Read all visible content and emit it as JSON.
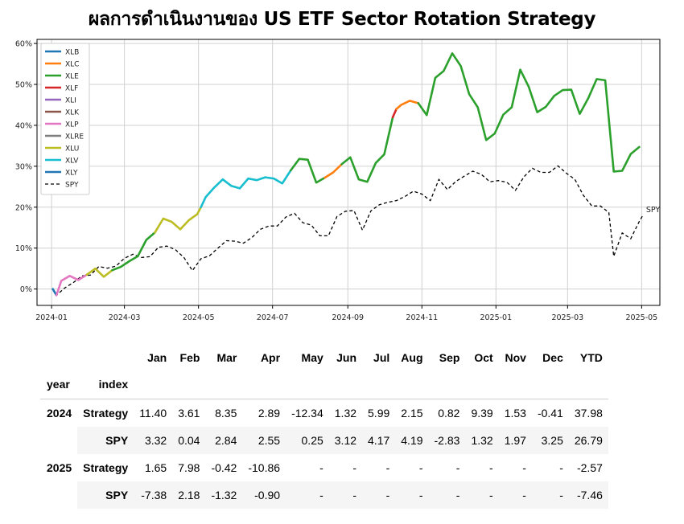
{
  "title": "ผลการดำเนินงานของ US ETF Sector Rotation Strategy",
  "chart_data": {
    "type": "line",
    "x_ticks": [
      "2024-01",
      "2024-03",
      "2024-05",
      "2024-07",
      "2024-09",
      "2024-11",
      "2025-01",
      "2025-03",
      "2025-05"
    ],
    "y_ticks": [
      "0%",
      "10%",
      "20%",
      "30%",
      "40%",
      "50%",
      "60%"
    ],
    "ylim": [
      -4,
      61
    ],
    "xlim": [
      "2023-12-20",
      "2025-05-16"
    ],
    "grid": true,
    "legend_position": "top-left",
    "legend": [
      {
        "name": "XLB",
        "color": "#1f77b4",
        "dash": false
      },
      {
        "name": "XLC",
        "color": "#ff7f0e",
        "dash": false
      },
      {
        "name": "XLE",
        "color": "#2ca02c",
        "dash": false
      },
      {
        "name": "XLF",
        "color": "#d62728",
        "dash": false
      },
      {
        "name": "XLI",
        "color": "#9467bd",
        "dash": false
      },
      {
        "name": "XLK",
        "color": "#8c564b",
        "dash": false
      },
      {
        "name": "XLP",
        "color": "#e377c2",
        "dash": false
      },
      {
        "name": "XLRE",
        "color": "#7f7f7f",
        "dash": false
      },
      {
        "name": "XLU",
        "color": "#bcbd22",
        "dash": false
      },
      {
        "name": "XLV",
        "color": "#17becf",
        "dash": false
      },
      {
        "name": "XLY",
        "color": "#1f77b4",
        "dash": false
      },
      {
        "name": "SPY",
        "color": "#000000",
        "dash": true
      }
    ],
    "end_label": "SPY",
    "strategy_segments": [
      {
        "name": "XLB",
        "color": "#1f77b4",
        "points": [
          [
            "2024-01-02",
            0
          ],
          [
            "2024-01-05",
            -1.5
          ]
        ]
      },
      {
        "name": "XLP",
        "color": "#e377c2",
        "points": [
          [
            "2024-01-05",
            -1.5
          ],
          [
            "2024-01-09",
            2
          ],
          [
            "2024-01-16",
            3.2
          ],
          [
            "2024-01-23",
            2.2
          ],
          [
            "2024-01-30",
            3.5
          ]
        ]
      },
      {
        "name": "XLU",
        "color": "#bcbd22",
        "points": [
          [
            "2024-01-30",
            3.5
          ],
          [
            "2024-02-06",
            5
          ],
          [
            "2024-02-13",
            3
          ],
          [
            "2024-02-20",
            4.6
          ]
        ]
      },
      {
        "name": "XLE",
        "color": "#2ca02c",
        "points": [
          [
            "2024-02-20",
            4.6
          ],
          [
            "2024-02-27",
            5.4
          ],
          [
            "2024-03-05",
            6.8
          ],
          [
            "2024-03-12",
            8
          ],
          [
            "2024-03-19",
            12
          ],
          [
            "2024-03-26",
            13.8
          ]
        ]
      },
      {
        "name": "XLU",
        "color": "#bcbd22",
        "points": [
          [
            "2024-03-26",
            13.8
          ],
          [
            "2024-04-02",
            17.2
          ],
          [
            "2024-04-09",
            16.4
          ],
          [
            "2024-04-16",
            14.6
          ],
          [
            "2024-04-23",
            16.8
          ],
          [
            "2024-04-30",
            18.3
          ],
          [
            "2024-05-03",
            20
          ]
        ]
      },
      {
        "name": "XLV",
        "color": "#17becf",
        "points": [
          [
            "2024-05-03",
            20
          ],
          [
            "2024-05-07",
            22.5
          ],
          [
            "2024-05-14",
            24.8
          ],
          [
            "2024-05-21",
            26.8
          ],
          [
            "2024-05-28",
            25.2
          ],
          [
            "2024-06-04",
            24.6
          ],
          [
            "2024-06-11",
            27
          ],
          [
            "2024-06-18",
            26.6
          ],
          [
            "2024-06-25",
            27.3
          ],
          [
            "2024-07-02",
            27
          ],
          [
            "2024-07-09",
            25.8
          ],
          [
            "2024-07-16",
            29
          ]
        ]
      },
      {
        "name": "XLE",
        "color": "#2ca02c",
        "points": [
          [
            "2024-07-16",
            29
          ],
          [
            "2024-07-23",
            31.8
          ],
          [
            "2024-07-30",
            31.6
          ],
          [
            "2024-08-06",
            26
          ],
          [
            "2024-08-13",
            27.2
          ]
        ]
      },
      {
        "name": "XLC",
        "color": "#ff7f0e",
        "points": [
          [
            "2024-08-13",
            27.2
          ],
          [
            "2024-08-20",
            28.5
          ],
          [
            "2024-08-27",
            30.5
          ]
        ]
      },
      {
        "name": "XLE",
        "color": "#2ca02c",
        "points": [
          [
            "2024-08-27",
            30.5
          ],
          [
            "2024-09-03",
            32.2
          ],
          [
            "2024-09-10",
            26.8
          ],
          [
            "2024-09-17",
            26.2
          ],
          [
            "2024-09-24",
            30.8
          ],
          [
            "2024-10-01",
            32.9
          ],
          [
            "2024-10-08",
            42
          ]
        ]
      },
      {
        "name": "XLF",
        "color": "#d62728",
        "points": [
          [
            "2024-10-08",
            42
          ],
          [
            "2024-10-11",
            44
          ]
        ]
      },
      {
        "name": "XLC",
        "color": "#ff7f0e",
        "points": [
          [
            "2024-10-11",
            44
          ],
          [
            "2024-10-15",
            45
          ],
          [
            "2024-10-22",
            46
          ],
          [
            "2024-10-29",
            45.4
          ]
        ]
      },
      {
        "name": "XLE",
        "color": "#2ca02c",
        "points": [
          [
            "2024-10-29",
            45.4
          ],
          [
            "2024-11-05",
            42.5
          ],
          [
            "2024-11-12",
            51.6
          ],
          [
            "2024-11-19",
            53.3
          ],
          [
            "2024-11-26",
            57.6
          ],
          [
            "2024-12-03",
            54.5
          ],
          [
            "2024-12-10",
            47.6
          ],
          [
            "2024-12-17",
            44.4
          ],
          [
            "2024-12-24",
            36.4
          ],
          [
            "2024-12-31",
            38
          ],
          [
            "2025-01-07",
            42.6
          ],
          [
            "2025-01-14",
            44.4
          ],
          [
            "2025-01-21",
            53.6
          ],
          [
            "2025-01-28",
            49.4
          ],
          [
            "2025-02-04",
            43.2
          ],
          [
            "2025-02-11",
            44.5
          ],
          [
            "2025-02-18",
            47.2
          ],
          [
            "2025-02-25",
            48.6
          ],
          [
            "2025-03-04",
            48.7
          ],
          [
            "2025-03-11",
            42.8
          ],
          [
            "2025-03-18",
            46.6
          ],
          [
            "2025-03-25",
            51.3
          ],
          [
            "2025-04-01",
            51
          ],
          [
            "2025-04-08",
            28.7
          ],
          [
            "2025-04-15",
            28.9
          ],
          [
            "2025-04-22",
            33
          ],
          [
            "2025-04-29",
            34.7
          ]
        ]
      }
    ],
    "spy": {
      "name": "SPY",
      "points": [
        [
          "2024-01-02",
          0
        ],
        [
          "2024-01-05",
          -1.5
        ],
        [
          "2024-01-12",
          0.3
        ],
        [
          "2024-01-19",
          1.6
        ],
        [
          "2024-01-26",
          3.2
        ],
        [
          "2024-02-02",
          3.4
        ],
        [
          "2024-02-09",
          5.5
        ],
        [
          "2024-02-16",
          5.1
        ],
        [
          "2024-02-23",
          5.6
        ],
        [
          "2024-03-01",
          7.5
        ],
        [
          "2024-03-08",
          8.5
        ],
        [
          "2024-03-15",
          7.7
        ],
        [
          "2024-03-22",
          7.9
        ],
        [
          "2024-03-29",
          10.2
        ],
        [
          "2024-04-05",
          10.5
        ],
        [
          "2024-04-12",
          9.6
        ],
        [
          "2024-04-19",
          7.7
        ],
        [
          "2024-04-26",
          4.5
        ],
        [
          "2024-05-03",
          7.4
        ],
        [
          "2024-05-10",
          8.1
        ],
        [
          "2024-05-17",
          10
        ],
        [
          "2024-05-24",
          11.8
        ],
        [
          "2024-05-31",
          11.7
        ],
        [
          "2024-06-07",
          11.2
        ],
        [
          "2024-06-14",
          12.6
        ],
        [
          "2024-06-21",
          14.6
        ],
        [
          "2024-06-28",
          15.4
        ],
        [
          "2024-07-05",
          15.4
        ],
        [
          "2024-07-12",
          17.6
        ],
        [
          "2024-07-19",
          18.5
        ],
        [
          "2024-07-26",
          16.2
        ],
        [
          "2024-08-02",
          15.6
        ],
        [
          "2024-08-09",
          13
        ],
        [
          "2024-08-16",
          13
        ],
        [
          "2024-08-23",
          17.7
        ],
        [
          "2024-08-30",
          19
        ],
        [
          "2024-09-06",
          19.2
        ],
        [
          "2024-09-13",
          14.4
        ],
        [
          "2024-09-20",
          19.1
        ],
        [
          "2024-09-27",
          20.6
        ],
        [
          "2024-10-04",
          21.2
        ],
        [
          "2024-10-11",
          21.6
        ],
        [
          "2024-10-18",
          22.6
        ],
        [
          "2024-10-25",
          23.9
        ],
        [
          "2024-11-01",
          23.2
        ],
        [
          "2024-11-08",
          21.6
        ],
        [
          "2024-11-15",
          26.8
        ],
        [
          "2024-11-22",
          24.3
        ],
        [
          "2024-11-29",
          26.3
        ],
        [
          "2024-12-06",
          27.6
        ],
        [
          "2024-12-13",
          28.8
        ],
        [
          "2024-12-20",
          28
        ],
        [
          "2024-12-27",
          26.2
        ],
        [
          "2025-01-03",
          26.5
        ],
        [
          "2025-01-10",
          26.1
        ],
        [
          "2025-01-17",
          24.1
        ],
        [
          "2025-01-24",
          27.4
        ],
        [
          "2025-01-31",
          29.5
        ],
        [
          "2025-02-07",
          28.5
        ],
        [
          "2025-02-14",
          28.5
        ],
        [
          "2025-02-21",
          30.1
        ],
        [
          "2025-02-28",
          28.3
        ],
        [
          "2025-03-07",
          26.8
        ],
        [
          "2025-03-14",
          22.9
        ],
        [
          "2025-03-21",
          20.3
        ],
        [
          "2025-03-28",
          20.3
        ],
        [
          "2025-04-04",
          18.7
        ],
        [
          "2025-04-08",
          8
        ],
        [
          "2025-04-15",
          13.7
        ],
        [
          "2025-04-22",
          12.3
        ],
        [
          "2025-04-29",
          16.5
        ],
        [
          "2025-05-02",
          18
        ]
      ]
    }
  },
  "table": {
    "header": {
      "months": [
        "Jan",
        "Feb",
        "Mar",
        "Apr",
        "May",
        "Jun",
        "Jul",
        "Aug",
        "Sep",
        "Oct",
        "Nov",
        "Dec",
        "YTD"
      ],
      "year_label": "year",
      "index_label": "index"
    },
    "rows": [
      {
        "year": "2024",
        "index": "Strategy",
        "values": [
          "11.40",
          "3.61",
          "8.35",
          "2.89",
          "-12.34",
          "1.32",
          "5.99",
          "2.15",
          "0.82",
          "9.39",
          "1.53",
          "-0.41",
          "37.98"
        ],
        "shaded": false
      },
      {
        "year": "",
        "index": "SPY",
        "values": [
          "3.32",
          "0.04",
          "2.84",
          "2.55",
          "0.25",
          "3.12",
          "4.17",
          "4.19",
          "-2.83",
          "1.32",
          "1.97",
          "3.25",
          "26.79"
        ],
        "shaded": true
      },
      {
        "year": "2025",
        "index": "Strategy",
        "values": [
          "1.65",
          "7.98",
          "-0.42",
          "-10.86",
          "-",
          "-",
          "-",
          "-",
          "-",
          "-",
          "-",
          "-",
          "-2.57"
        ],
        "shaded": false
      },
      {
        "year": "",
        "index": "SPY",
        "values": [
          "-7.38",
          "2.18",
          "-1.32",
          "-0.90",
          "-",
          "-",
          "-",
          "-",
          "-",
          "-",
          "-",
          "-",
          "-7.46"
        ],
        "shaded": true
      }
    ]
  }
}
